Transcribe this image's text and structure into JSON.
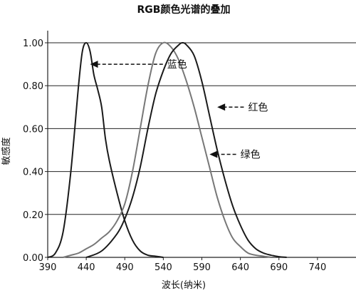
{
  "chart_data": {
    "type": "line",
    "title": "RGB颜色光谱的叠加",
    "xlabel": "波长(纳米)",
    "ylabel": "敏感度",
    "xlim": [
      390,
      790
    ],
    "ylim": [
      0,
      1.05
    ],
    "x_ticks": [
      390,
      440,
      490,
      540,
      590,
      640,
      690,
      740
    ],
    "x_tick_labels": [
      "390",
      "440",
      "490",
      "540",
      "590",
      "640",
      "690",
      "740"
    ],
    "y_ticks": [
      0,
      0.2,
      0.4,
      0.6,
      0.8,
      1.0
    ],
    "y_tick_labels": [
      "0.00",
      "0.20",
      "0.40",
      "0.60",
      "0.80",
      "1.00"
    ],
    "grid": "horizontal",
    "series": [
      {
        "name": "蓝色",
        "color": "#1a1a1a",
        "x": [
          390,
          400,
          410,
          420,
          430,
          435,
          440,
          445,
          450,
          455,
          460,
          465,
          470,
          480,
          490,
          500,
          510,
          520,
          530,
          540
        ],
        "y": [
          0.0,
          0.02,
          0.12,
          0.4,
          0.8,
          0.96,
          1.0,
          0.96,
          0.85,
          0.78,
          0.7,
          0.55,
          0.45,
          0.3,
          0.17,
          0.08,
          0.03,
          0.01,
          0.005,
          0.0
        ]
      },
      {
        "name": "绿色",
        "color": "#777777",
        "x": [
          410,
          420,
          430,
          440,
          450,
          460,
          470,
          480,
          490,
          500,
          510,
          520,
          530,
          540,
          550,
          560,
          570,
          580,
          590,
          600,
          610,
          620,
          630,
          640,
          650,
          660,
          670,
          680
        ],
        "y": [
          0.0,
          0.01,
          0.02,
          0.04,
          0.06,
          0.09,
          0.12,
          0.17,
          0.25,
          0.4,
          0.6,
          0.8,
          0.95,
          1.0,
          0.98,
          0.92,
          0.82,
          0.7,
          0.56,
          0.42,
          0.28,
          0.17,
          0.09,
          0.05,
          0.02,
          0.01,
          0.005,
          0.0
        ]
      },
      {
        "name": "红色",
        "color": "#1a1a1a",
        "x": [
          440,
          460,
          480,
          490,
          500,
          510,
          520,
          530,
          540,
          550,
          560,
          565,
          570,
          580,
          590,
          600,
          610,
          620,
          630,
          640,
          650,
          660,
          670,
          680,
          690,
          700
        ],
        "y": [
          0.0,
          0.03,
          0.11,
          0.18,
          0.28,
          0.42,
          0.6,
          0.76,
          0.87,
          0.95,
          0.99,
          1.0,
          0.99,
          0.94,
          0.82,
          0.66,
          0.5,
          0.36,
          0.24,
          0.15,
          0.08,
          0.04,
          0.02,
          0.01,
          0.003,
          0.0
        ]
      }
    ],
    "annotations": [
      {
        "text": "蓝色",
        "x": 545,
        "y": 0.9,
        "arrow_to": [
          445,
          0.9
        ]
      },
      {
        "text": "红色",
        "x": 650,
        "y": 0.7,
        "arrow_to": [
          610,
          0.7
        ]
      },
      {
        "text": "绿色",
        "x": 640,
        "y": 0.48,
        "arrow_to": [
          600,
          0.48
        ]
      }
    ]
  }
}
